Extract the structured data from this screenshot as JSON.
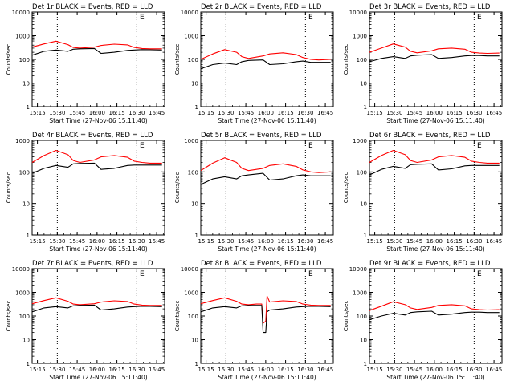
{
  "figure": {
    "xlabel": "Start Time (27-Nov-06 15:11:40)",
    "ylabel": "Counts/sec",
    "x_tick_labels": [
      "15:15",
      "15:30",
      "15:45",
      "16:00",
      "16:15",
      "16:30",
      "16:45"
    ],
    "y_tick_labels": [
      "1",
      "10",
      "100",
      "1000",
      "10000"
    ],
    "marker_label": "E",
    "colors": {
      "events": "#000000",
      "lld": "#ff0000",
      "axes": "#000000"
    }
  },
  "chart_data": [
    {
      "type": "line",
      "title": "Det 1r BLACK = Events, RED = LLD",
      "xlabel": "Start Time (27-Nov-06 15:11:40)",
      "ylabel": "Counts/sec",
      "yscale": "log",
      "ylim": [
        1,
        10000
      ],
      "xlim": [
        "15:11",
        "16:51"
      ],
      "x_ticks": [
        "15:15",
        "15:30",
        "15:45",
        "16:00",
        "16:15",
        "16:30",
        "16:45"
      ],
      "dotted_vlines": [
        "15:30",
        "16:30"
      ],
      "marker": {
        "label": "E",
        "x": "16:31"
      },
      "x": [
        "15:11",
        "15:20",
        "15:29",
        "15:38",
        "15:42",
        "15:47",
        "15:58",
        "16:03",
        "16:13",
        "16:23",
        "16:28",
        "16:34",
        "16:40",
        "16:49"
      ],
      "series": [
        {
          "name": "Events",
          "color": "#000000",
          "values": [
            150,
            220,
            250,
            220,
            270,
            280,
            290,
            180,
            200,
            240,
            250,
            260,
            255,
            250
          ]
        },
        {
          "name": "LLD",
          "color": "#ff0000",
          "values": [
            330,
            450,
            590,
            420,
            320,
            300,
            330,
            390,
            440,
            410,
            320,
            290,
            280,
            280
          ]
        }
      ]
    },
    {
      "type": "line",
      "title": "Det 2r BLACK = Events, RED = LLD",
      "xlabel": "Start Time (27-Nov-06 15:11:40)",
      "ylabel": "Counts/sec",
      "yscale": "log",
      "ylim": [
        1,
        10000
      ],
      "xlim": [
        "15:11",
        "16:51"
      ],
      "x_ticks": [
        "15:15",
        "15:30",
        "15:45",
        "16:00",
        "16:15",
        "16:30",
        "16:45"
      ],
      "dotted_vlines": [
        "15:30",
        "16:30"
      ],
      "marker": {
        "label": "E",
        "x": "16:31"
      },
      "x": [
        "15:11",
        "15:20",
        "15:29",
        "15:38",
        "15:42",
        "15:47",
        "15:58",
        "16:03",
        "16:13",
        "16:23",
        "16:28",
        "16:34",
        "16:40",
        "16:49"
      ],
      "series": [
        {
          "name": "Events",
          "color": "#000000",
          "values": [
            40,
            60,
            70,
            60,
            80,
            90,
            95,
            60,
            65,
            80,
            85,
            75,
            75,
            75
          ]
        },
        {
          "name": "LLD",
          "color": "#ff0000",
          "values": [
            100,
            170,
            260,
            200,
            130,
            110,
            140,
            170,
            190,
            160,
            120,
            100,
            95,
            100
          ]
        }
      ]
    },
    {
      "type": "line",
      "title": "Det 3r BLACK = Events, RED = LLD",
      "xlabel": "Start Time (27-Nov-06 15:11:40)",
      "ylabel": "Counts/sec",
      "yscale": "log",
      "ylim": [
        1,
        10000
      ],
      "xlim": [
        "15:11",
        "16:51"
      ],
      "x_ticks": [
        "15:15",
        "15:30",
        "15:45",
        "16:00",
        "16:15",
        "16:30",
        "16:45"
      ],
      "dotted_vlines": [
        "15:30",
        "16:30"
      ],
      "marker": {
        "label": "E",
        "x": "16:31"
      },
      "x": [
        "15:11",
        "15:20",
        "15:29",
        "15:38",
        "15:42",
        "15:47",
        "15:58",
        "16:03",
        "16:13",
        "16:23",
        "16:28",
        "16:34",
        "16:40",
        "16:49"
      ],
      "series": [
        {
          "name": "Events",
          "color": "#000000",
          "values": [
            80,
            110,
            130,
            110,
            140,
            150,
            160,
            110,
            120,
            140,
            145,
            145,
            140,
            140
          ]
        },
        {
          "name": "LLD",
          "color": "#ff0000",
          "values": [
            200,
            300,
            450,
            330,
            220,
            190,
            230,
            280,
            300,
            270,
            200,
            185,
            180,
            185
          ]
        }
      ]
    },
    {
      "type": "line",
      "title": "Det 4r BLACK = Events, RED = LLD",
      "xlabel": "Start Time (27-Nov-06 15:11:40)",
      "ylabel": "Counts/sec",
      "yscale": "log",
      "ylim": [
        1,
        1000
      ],
      "xlim": [
        "15:11",
        "16:51"
      ],
      "x_ticks": [
        "15:15",
        "15:30",
        "15:45",
        "16:00",
        "16:15",
        "16:30",
        "16:45"
      ],
      "dotted_vlines": [
        "15:30",
        "16:30"
      ],
      "marker": {
        "label": "E",
        "x": "16:31"
      },
      "x": [
        "15:11",
        "15:20",
        "15:29",
        "15:38",
        "15:42",
        "15:47",
        "15:58",
        "16:03",
        "16:13",
        "16:23",
        "16:28",
        "16:34",
        "16:40",
        "16:49"
      ],
      "series": [
        {
          "name": "Events",
          "color": "#000000",
          "values": [
            90,
            130,
            160,
            140,
            180,
            185,
            190,
            120,
            130,
            160,
            165,
            165,
            165,
            165
          ]
        },
        {
          "name": "LLD",
          "color": "#ff0000",
          "values": [
            200,
            330,
            480,
            350,
            230,
            200,
            240,
            300,
            330,
            290,
            220,
            200,
            190,
            190
          ]
        }
      ]
    },
    {
      "type": "line",
      "title": "Det 5r BLACK = Events, RED = LLD",
      "xlabel": "Start Time (27-Nov-06 15:11:40)",
      "ylabel": "Counts/sec",
      "yscale": "log",
      "ylim": [
        1,
        1000
      ],
      "xlim": [
        "15:11",
        "16:51"
      ],
      "x_ticks": [
        "15:15",
        "15:30",
        "15:45",
        "16:00",
        "16:15",
        "16:30",
        "16:45"
      ],
      "dotted_vlines": [
        "15:30",
        "16:30"
      ],
      "marker": {
        "label": "E",
        "x": "16:31"
      },
      "x": [
        "15:11",
        "15:20",
        "15:29",
        "15:38",
        "15:42",
        "15:47",
        "15:58",
        "16:03",
        "16:13",
        "16:23",
        "16:28",
        "16:34",
        "16:40",
        "16:49"
      ],
      "series": [
        {
          "name": "Events",
          "color": "#000000",
          "values": [
            40,
            60,
            70,
            60,
            75,
            80,
            90,
            55,
            60,
            75,
            80,
            75,
            75,
            75
          ]
        },
        {
          "name": "LLD",
          "color": "#ff0000",
          "values": [
            110,
            190,
            280,
            200,
            130,
            110,
            130,
            160,
            180,
            150,
            115,
            100,
            95,
            100
          ]
        }
      ]
    },
    {
      "type": "line",
      "title": "Det 6r BLACK = Events, RED = LLD",
      "xlabel": "Start Time (27-Nov-06 15:11:40)",
      "ylabel": "Counts/sec",
      "yscale": "log",
      "ylim": [
        1,
        1000
      ],
      "xlim": [
        "15:11",
        "16:51"
      ],
      "x_ticks": [
        "15:15",
        "15:30",
        "15:45",
        "16:00",
        "16:15",
        "16:30",
        "16:45"
      ],
      "dotted_vlines": [
        "15:30",
        "16:30"
      ],
      "marker": {
        "label": "E",
        "x": "16:31"
      },
      "x": [
        "15:11",
        "15:20",
        "15:29",
        "15:38",
        "15:42",
        "15:47",
        "15:58",
        "16:03",
        "16:13",
        "16:23",
        "16:28",
        "16:34",
        "16:40",
        "16:49"
      ],
      "series": [
        {
          "name": "Events",
          "color": "#000000",
          "values": [
            80,
            120,
            150,
            130,
            170,
            175,
            180,
            115,
            125,
            155,
            160,
            160,
            160,
            160
          ]
        },
        {
          "name": "LLD",
          "color": "#ff0000",
          "values": [
            200,
            330,
            480,
            350,
            230,
            200,
            240,
            300,
            330,
            290,
            220,
            200,
            190,
            190
          ]
        }
      ]
    },
    {
      "type": "line",
      "title": "Det 7r BLACK = Events, RED = LLD",
      "xlabel": "Start Time (27-Nov-06 15:11:40)",
      "ylabel": "Counts/sec",
      "yscale": "log",
      "ylim": [
        1,
        10000
      ],
      "xlim": [
        "15:11",
        "16:51"
      ],
      "x_ticks": [
        "15:15",
        "15:30",
        "15:45",
        "16:00",
        "16:15",
        "16:30",
        "16:45"
      ],
      "dotted_vlines": [
        "15:30",
        "16:30"
      ],
      "marker": {
        "label": "E",
        "x": "16:31"
      },
      "x": [
        "15:11",
        "15:20",
        "15:29",
        "15:38",
        "15:42",
        "15:47",
        "15:58",
        "16:03",
        "16:13",
        "16:23",
        "16:28",
        "16:34",
        "16:40",
        "16:49"
      ],
      "series": [
        {
          "name": "Events",
          "color": "#000000",
          "values": [
            150,
            220,
            250,
            220,
            270,
            280,
            290,
            180,
            200,
            240,
            250,
            260,
            255,
            250
          ]
        },
        {
          "name": "LLD",
          "color": "#ff0000",
          "values": [
            330,
            450,
            590,
            420,
            320,
            300,
            330,
            390,
            440,
            410,
            320,
            290,
            280,
            280
          ]
        }
      ]
    },
    {
      "type": "line",
      "title": "Det 8r BLACK = Events, RED = LLD",
      "xlabel": "Start Time (27-Nov-06 15:11:40)",
      "ylabel": "Counts/sec",
      "yscale": "log",
      "ylim": [
        1,
        10000
      ],
      "xlim": [
        "15:11",
        "16:51"
      ],
      "x_ticks": [
        "15:15",
        "15:30",
        "15:45",
        "16:00",
        "16:15",
        "16:30",
        "16:45"
      ],
      "dotted_vlines": [
        "15:30",
        "16:30"
      ],
      "marker": {
        "label": "E",
        "x": "16:31"
      },
      "x": [
        "15:11",
        "15:20",
        "15:29",
        "15:38",
        "15:42",
        "15:47",
        "15:53",
        "15:57",
        "15:58",
        "16:00",
        "16:01",
        "16:03",
        "16:13",
        "16:23",
        "16:28",
        "16:34",
        "16:40",
        "16:49"
      ],
      "series": [
        {
          "name": "Events",
          "color": "#000000",
          "values": [
            150,
            220,
            250,
            220,
            270,
            280,
            280,
            280,
            20,
            20,
            150,
            180,
            200,
            240,
            250,
            260,
            255,
            250
          ]
        },
        {
          "name": "LLD",
          "color": "#ff0000",
          "values": [
            330,
            450,
            590,
            420,
            320,
            300,
            320,
            320,
            50,
            60,
            700,
            390,
            440,
            410,
            320,
            290,
            280,
            280
          ]
        }
      ]
    },
    {
      "type": "line",
      "title": "Det 9r BLACK = Events, RED = LLD",
      "xlabel": "Start Time (27-Nov-06 15:11:40)",
      "ylabel": "Counts/sec",
      "yscale": "log",
      "ylim": [
        1,
        10000
      ],
      "xlim": [
        "15:11",
        "16:51"
      ],
      "x_ticks": [
        "15:15",
        "15:30",
        "15:45",
        "16:00",
        "16:15",
        "16:30",
        "16:45"
      ],
      "dotted_vlines": [
        "15:30",
        "16:30"
      ],
      "marker": {
        "label": "E",
        "x": "16:31"
      },
      "x": [
        "15:11",
        "15:20",
        "15:29",
        "15:38",
        "15:42",
        "15:47",
        "15:58",
        "16:03",
        "16:13",
        "16:23",
        "16:28",
        "16:34",
        "16:40",
        "16:49"
      ],
      "series": [
        {
          "name": "Events",
          "color": "#000000",
          "values": [
            70,
            100,
            130,
            110,
            140,
            150,
            160,
            110,
            120,
            140,
            145,
            145,
            140,
            140
          ]
        },
        {
          "name": "LLD",
          "color": "#ff0000",
          "values": [
            170,
            260,
            400,
            300,
            220,
            190,
            230,
            280,
            300,
            270,
            200,
            185,
            180,
            185
          ]
        }
      ]
    }
  ]
}
